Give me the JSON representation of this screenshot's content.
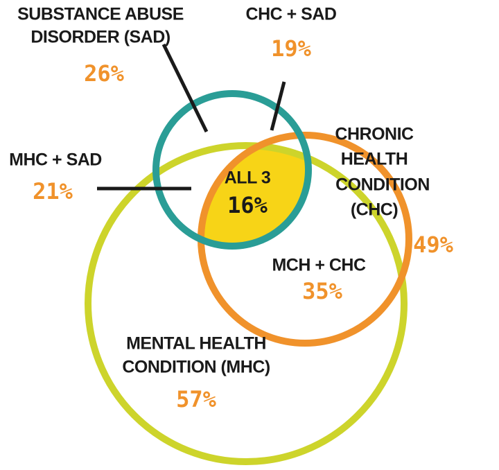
{
  "sets": [
    {
      "label": [
        "SUBSTANCE ABUSE",
        "DISORDER (SAD)"
      ],
      "value": "26%"
    },
    {
      "label": [
        "CHRONIC",
        "HEALTH",
        "CONDITION",
        "(CHC)"
      ],
      "value": "49%"
    },
    {
      "label": [
        "MENTAL HEALTH",
        "CONDITION (MHC)"
      ],
      "value": "57%"
    }
  ],
  "overlaps": [
    {
      "label": "CHC + SAD",
      "value": "19%"
    },
    {
      "label": "MHC + SAD",
      "value": "21%"
    },
    {
      "label": "MCH + CHC",
      "value": "35%"
    },
    {
      "label": "ALL 3",
      "value": "16%"
    }
  ]
}
